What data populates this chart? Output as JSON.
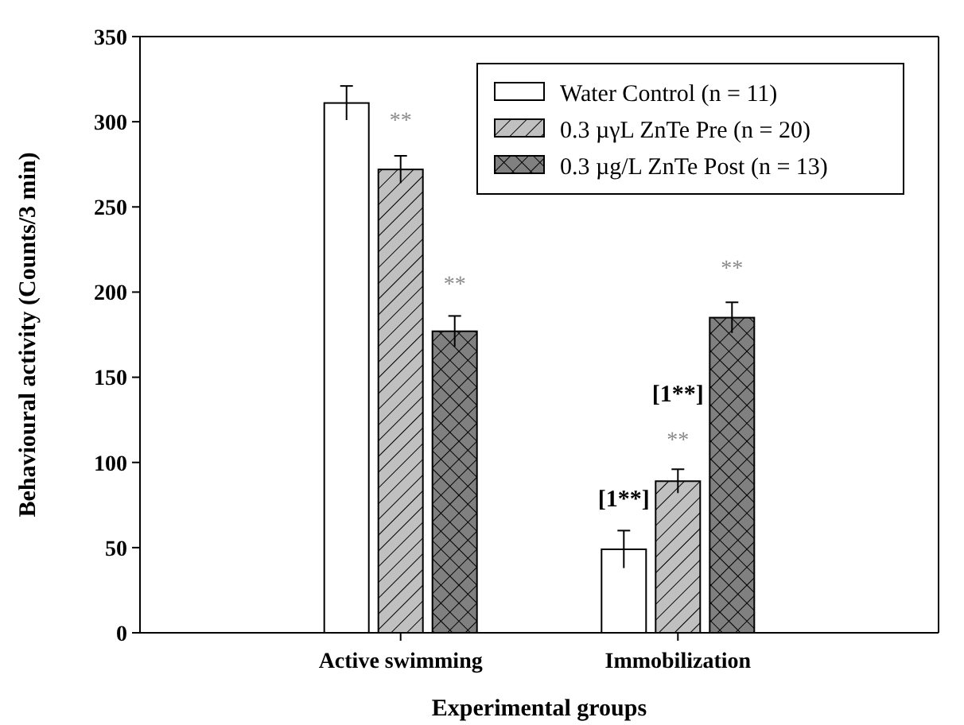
{
  "chart_data": {
    "type": "bar",
    "xlabel": "Experimental groups",
    "ylabel": "Behavioural activity (Counts/3 min)",
    "categories": [
      "Active swimming",
      "Immobilization"
    ],
    "series": [
      {
        "name": "Water Control (n = 11)",
        "color": "#ffffff",
        "values": [
          311,
          49
        ],
        "errors": [
          10,
          11
        ]
      },
      {
        "name": "0.3 µγL ZnTe Pre (n = 20)",
        "color": "#c0c0c0",
        "values": [
          272,
          89
        ],
        "errors": [
          8,
          7
        ]
      },
      {
        "name": "0.3 µg/L ZnTe Post (n = 13)",
        "color": "#808080",
        "values": [
          177,
          185
        ],
        "errors": [
          9,
          9
        ]
      }
    ],
    "ylim": [
      0,
      350
    ],
    "yticks": [
      0,
      50,
      100,
      150,
      200,
      250,
      300,
      350
    ],
    "grid": false,
    "legend": "top right",
    "annotations": [
      "**",
      "**",
      "[1**]",
      "[1**]",
      "**",
      "**"
    ]
  }
}
